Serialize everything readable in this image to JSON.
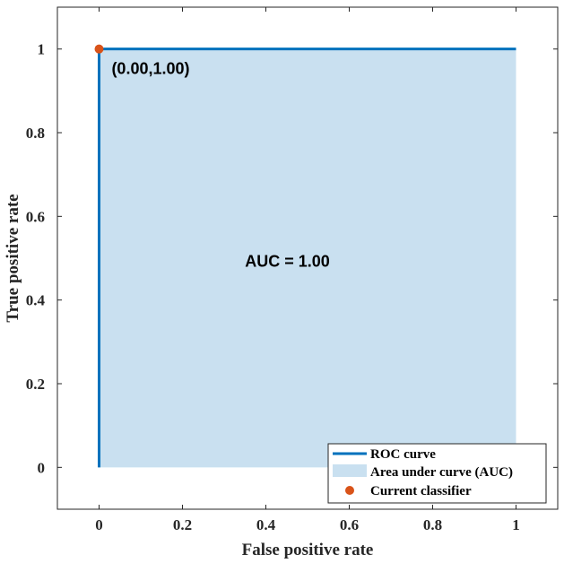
{
  "chart_data": {
    "type": "line",
    "xlabel": "False positive rate",
    "ylabel": "True positive rate",
    "xlim": [
      -0.1,
      1.1
    ],
    "ylim": [
      -0.1,
      1.1
    ],
    "xticks": [
      0,
      0.2,
      0.4,
      0.6,
      0.8,
      1
    ],
    "yticks": [
      0,
      0.2,
      0.4,
      0.6,
      0.8,
      1
    ],
    "xtick_labels": [
      "0",
      "0.2",
      "0.4",
      "0.6",
      "0.8",
      "1"
    ],
    "ytick_labels": [
      "0",
      "0.2",
      "0.4",
      "0.6",
      "0.8",
      "1"
    ],
    "grid": false,
    "series": [
      {
        "name": "ROC curve",
        "type": "line",
        "x": [
          0,
          0,
          1
        ],
        "y": [
          0,
          1,
          1
        ],
        "color": "#0072BD"
      },
      {
        "name": "Area under curve (AUC)",
        "type": "area",
        "x": [
          0,
          0,
          1,
          1
        ],
        "y": [
          0,
          1,
          1,
          0
        ],
        "color": "#C9E0F0"
      },
      {
        "name": "Current classifier",
        "type": "scatter",
        "x": [
          0
        ],
        "y": [
          1
        ],
        "color": "#D95319"
      }
    ],
    "annotations": [
      {
        "text": "(0.00,1.00)",
        "x": 0.03,
        "y": 0.94
      },
      {
        "text": "AUC = 1.00",
        "x": 0.35,
        "y": 0.48
      }
    ],
    "legend": {
      "position": "bottom-right",
      "entries": [
        "ROC curve",
        "Area under curve (AUC)",
        "Current classifier"
      ]
    }
  }
}
